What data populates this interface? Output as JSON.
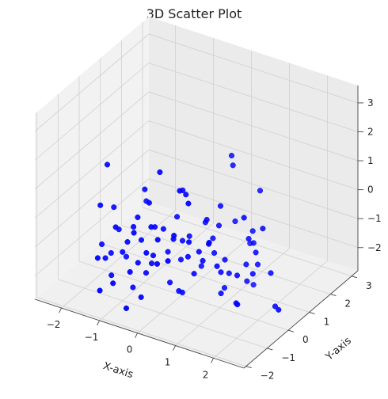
{
  "chart_data": {
    "type": "scatter",
    "projection": "3d",
    "title": "3D Scatter Plot",
    "xlabel": "X-axis",
    "ylabel": "Y-axis",
    "zlabel": "",
    "xlim": [
      -2.7,
      2.8
    ],
    "ylim": [
      -2.1,
      3.3
    ],
    "zlim": [
      -2.8,
      3.6
    ],
    "xticks": [
      -2,
      -1,
      0,
      1,
      2
    ],
    "yticks": [
      -2,
      -1,
      0,
      1,
      2,
      3
    ],
    "zticks": [
      -2,
      -1,
      0,
      1,
      2,
      3
    ],
    "xtick_labels": [
      "−2",
      "−1",
      "0",
      "1",
      "2"
    ],
    "ytick_labels": [
      "−2",
      "−1",
      "0",
      "1",
      "2",
      "3"
    ],
    "ztick_labels": [
      "−2",
      "−1",
      "0",
      "1",
      "2",
      "3"
    ],
    "grid": true,
    "marker_color": "#0000ff",
    "pane_color": "#f2f2f2",
    "series": [
      {
        "points": [
          [
            -1.66,
            -0.54,
            1.33
          ],
          [
            -0.21,
            -0.66,
            1.77
          ],
          [
            -0.95,
            -0.04,
            0.47
          ],
          [
            0.19,
            -0.44,
            1.16
          ],
          [
            0.32,
            -0.38,
            1.05
          ],
          [
            -0.62,
            -0.43,
            0.39
          ],
          [
            0.59,
            -0.75,
            1.09
          ],
          [
            -0.12,
            0.26,
            0.61
          ],
          [
            0.7,
            1.1,
            1.64
          ],
          [
            0.69,
            1.18,
            1.25
          ],
          [
            0.83,
            0.34,
            0.43
          ],
          [
            1.46,
            0.32,
            0.31
          ],
          [
            1.91,
            0.4,
            0.08
          ],
          [
            1.35,
            1.28,
            0.6
          ],
          [
            -0.96,
            -0.36,
            -0.3
          ],
          [
            -1.15,
            0.39,
            -0.29
          ],
          [
            -1.86,
            -0.51,
            -0.18
          ],
          [
            -1.76,
            -0.05,
            -0.49
          ],
          [
            -1.34,
            -0.72,
            -0.58
          ],
          [
            -0.7,
            -1.01,
            -0.32
          ],
          [
            -1.06,
            -0.38,
            -0.66
          ],
          [
            -0.58,
            -0.23,
            -0.55
          ],
          [
            -0.22,
            0.17,
            -0.29
          ],
          [
            -0.4,
            -0.15,
            -0.59
          ],
          [
            0.47,
            0.34,
            -0.2
          ],
          [
            0.09,
            -0.13,
            -0.8
          ],
          [
            0.1,
            0.18,
            -0.83
          ],
          [
            -0.49,
            -0.57,
            -0.3
          ],
          [
            -0.15,
            -0.87,
            -0.41
          ],
          [
            -0.08,
            -0.25,
            -0.74
          ],
          [
            0.16,
            -0.66,
            -0.26
          ],
          [
            0.57,
            -0.69,
            -0.29
          ],
          [
            0.74,
            -0.04,
            -0.64
          ],
          [
            0.27,
            0.63,
            -0.56
          ],
          [
            0.65,
            0.59,
            -0.48
          ],
          [
            0.76,
            1.16,
            -0.64
          ],
          [
            0.93,
            -0.4,
            -0.38
          ],
          [
            1.36,
            0.72,
            -0.71
          ],
          [
            1.15,
            1.29,
            -0.89
          ],
          [
            1.25,
            1.15,
            -1.17
          ],
          [
            1.66,
            0.52,
            -0.93
          ],
          [
            0.49,
            0.59,
            -0.99
          ],
          [
            0.48,
            -0.05,
            -1.06
          ],
          [
            1.1,
            -0.31,
            -1.13
          ],
          [
            -1.66,
            0.01,
            -1.25
          ],
          [
            -1.18,
            -0.45,
            -1.19
          ],
          [
            -0.92,
            -0.26,
            -1.13
          ],
          [
            -0.45,
            -0.87,
            -0.99
          ],
          [
            -0.48,
            -0.49,
            -1.33
          ],
          [
            -0.16,
            -0.88,
            -1.24
          ],
          [
            0.18,
            -0.98,
            -0.93
          ],
          [
            0.28,
            -0.21,
            -1.22
          ],
          [
            0.61,
            0.44,
            -1.35
          ],
          [
            0.63,
            -0.14,
            -1.25
          ],
          [
            0.83,
            0.55,
            -1.56
          ],
          [
            0.99,
            0.07,
            -1.62
          ],
          [
            1.31,
            0.69,
            -1.6
          ],
          [
            1.61,
            0.7,
            -1.48
          ],
          [
            1.35,
            0.19,
            -1.65
          ],
          [
            1.53,
            0.61,
            -1.78
          ],
          [
            -2.06,
            -0.08,
            -1.88
          ],
          [
            -1.53,
            -1.23,
            -1.41
          ],
          [
            -1.28,
            -0.5,
            -1.55
          ],
          [
            -0.78,
            -0.67,
            -1.6
          ],
          [
            -0.65,
            -0.26,
            -1.82
          ],
          [
            -0.1,
            0.14,
            -1.7
          ],
          [
            0.34,
            -0.03,
            -1.89
          ],
          [
            1.21,
            0.91,
            -2.36
          ],
          [
            2.24,
            0.39,
            -2.46
          ],
          [
            1.97,
            0.67,
            -1.6
          ],
          [
            -0.52,
            0.28,
            -1.7
          ],
          [
            -1.8,
            -0.11,
            -2.05
          ],
          [
            -1.5,
            0.07,
            -2.16
          ],
          [
            -1.54,
            -0.56,
            -2.43
          ],
          [
            -1.8,
            -0.38,
            -2.06
          ],
          [
            -1.16,
            -1.17,
            -2.16
          ],
          [
            -0.8,
            -0.25,
            -2.22
          ],
          [
            -1.03,
            -0.46,
            -2.69
          ],
          [
            -0.47,
            -1.08,
            -2.4
          ],
          [
            0.06,
            -0.25,
            -2.47
          ],
          [
            0.86,
            0.31,
            -2.56
          ],
          [
            0.84,
            0.51,
            -2.5
          ],
          [
            1.84,
            -0.68,
            -1.9
          ],
          [
            -1.35,
            -1.45,
            -2.32
          ],
          [
            -0.66,
            -1.44,
            -2.64
          ],
          [
            -0.94,
            -0.76,
            -1.93
          ],
          [
            0.22,
            -0.37,
            -2.38
          ],
          [
            2.58,
            -0.06,
            -2.15
          ],
          [
            1.09,
            1.43,
            -2.86
          ],
          [
            0.73,
            1.92,
            -1.89
          ],
          [
            0.06,
            0.82,
            -2.28
          ],
          [
            -0.29,
            -0.04,
            -2.46
          ],
          [
            1.53,
            -0.18,
            -2.3
          ],
          [
            0.9,
            0.62,
            -2.04
          ]
        ]
      }
    ]
  }
}
